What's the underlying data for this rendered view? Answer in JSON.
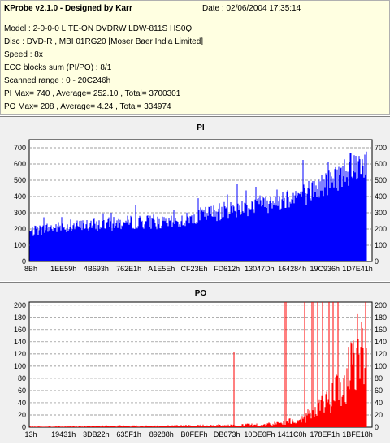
{
  "header": {
    "app_title": "KProbe v2.1.0 - Designed by Karr",
    "date": "Date : 02/06/2004 17:35:14",
    "lines": [
      "Model : 2-0-0-0 LITE-ON DVDRW LDW-811S   HS0Q",
      "Disc : DVD-R , MBI 01RG20   [Moser Baer India Limited]",
      "Speed : 8x",
      "ECC blocks sum (PI/PO) : 8/1",
      "Scanned range : 0 - 20C246h",
      "PI Max= 740 , Average= 252.10 , Total= 3700301",
      "PO Max= 208 , Average= 4.24 , Total= 334974"
    ]
  },
  "colors": {
    "header_bg": "#ffffe1",
    "panel_bg": "#f0f0f0",
    "plot_bg": "#ffffff",
    "grid": "#808080",
    "pi_series": "#0000ff",
    "po_series": "#ff0000"
  },
  "chart_data": [
    {
      "type": "area",
      "title": "PI",
      "xlabel": "",
      "ylabel": "",
      "ylim": [
        0,
        750
      ],
      "yticks": [
        0,
        100,
        200,
        300,
        400,
        500,
        600,
        700
      ],
      "xtick_labels": [
        "8Bh",
        "1EE59h",
        "4B693h",
        "762E1h",
        "A1E5Eh",
        "CF23Eh",
        "FD612h",
        "13047Dh",
        "164284h",
        "19C936h",
        "1D7E41h"
      ],
      "grid": true,
      "series": [
        {
          "x": [
            0.0,
            0.05,
            0.1,
            0.15,
            0.2,
            0.25,
            0.3,
            0.35,
            0.4,
            0.45,
            0.5,
            0.55,
            0.6,
            0.65,
            0.7,
            0.75,
            0.8,
            0.85,
            0.9,
            0.95,
            1.0
          ],
          "values": [
            185,
            210,
            218,
            225,
            232,
            240,
            248,
            252,
            240,
            255,
            290,
            310,
            330,
            350,
            370,
            400,
            420,
            460,
            520,
            590,
            640
          ]
        }
      ]
    },
    {
      "type": "bar",
      "title": "PO",
      "xlabel": "",
      "ylabel": "",
      "ylim": [
        0,
        205
      ],
      "yticks": [
        0,
        20,
        40,
        60,
        80,
        100,
        120,
        140,
        160,
        180,
        200
      ],
      "xtick_labels": [
        "13h",
        "19431h",
        "3DB22h",
        "635F1h",
        "89288h",
        "B0FEFh",
        "DB673h",
        "10DE0Fh",
        "1411C0h",
        "178EF1h",
        "1BFE18h"
      ],
      "grid": true,
      "series": [
        {
          "x": [
            0.0,
            0.1,
            0.2,
            0.3,
            0.4,
            0.5,
            0.6,
            0.65,
            0.7,
            0.75,
            0.8,
            0.85,
            0.9,
            0.95,
            1.0
          ],
          "values": [
            1,
            1,
            2,
            2,
            2,
            3,
            3,
            4,
            5,
            7,
            12,
            25,
            50,
            95,
            150
          ]
        }
      ]
    }
  ]
}
